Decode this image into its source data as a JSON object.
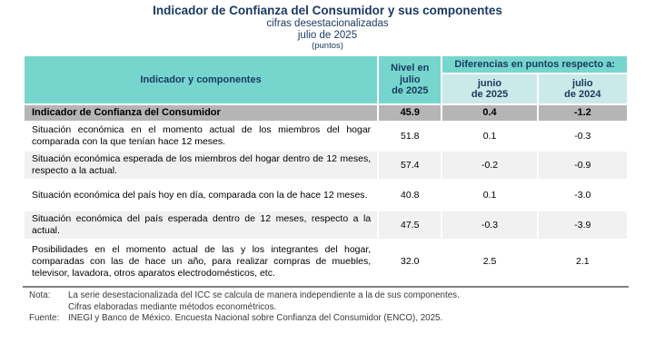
{
  "title": {
    "main": "Indicador de Confianza del Consumidor y sus componentes",
    "subtitle": "cifras desestacionalizadas",
    "date": "julio de 2025",
    "units": "(puntos)"
  },
  "table": {
    "header": {
      "indicator": "Indicador y componentes",
      "level": "Nivel en\njulio\nde 2025",
      "diff_group": "Diferencias en puntos respecto a:",
      "diff_junio": "junio\nde 2025",
      "diff_julio": "julio\nde 2024"
    },
    "summary_row": {
      "label": "Indicador de Confianza del Consumidor",
      "level": "45.9",
      "diff_junio": "0.4",
      "diff_julio": "-1.2"
    },
    "rows": [
      {
        "label": "Situación económica en el momento actual de los miembros del hogar comparada con la que tenían hace 12 meses.",
        "level": "51.8",
        "diff_junio": "0.1",
        "diff_julio": "-0.3"
      },
      {
        "label": "Situación económica esperada de los miembros del hogar dentro de 12 meses, respecto a la actual.",
        "level": "57.4",
        "diff_junio": "-0.2",
        "diff_julio": "-0.9"
      },
      {
        "label": "Situación económica del país hoy en día, comparada con la de hace 12 meses.",
        "level": "40.8",
        "diff_junio": "0.1",
        "diff_julio": "-3.0"
      },
      {
        "label": "Situación económica del país esperada dentro de 12 meses, respecto a la actual.",
        "level": "47.5",
        "diff_junio": "-0.3",
        "diff_julio": "-3.9"
      },
      {
        "label": "Posibilidades en el momento actual de las y los integrantes del hogar, comparadas con las de hace un año, para realizar compras de muebles, televisor, lavadora, otros aparatos electrodomésticos, etc.",
        "level": "32.0",
        "diff_junio": "2.5",
        "diff_julio": "2.1"
      }
    ]
  },
  "notes": {
    "nota_label": "Nota:",
    "nota_line1": "La serie desestacionalizada del ICC se calcula de manera independiente a la de sus componentes.",
    "nota_line2": "Cifras elaboradas mediante métodos econométricos.",
    "fuente_label": "Fuente:",
    "fuente_text": "INEGI y Banco de México. Encuesta Nacional sobre Confianza del Consumidor (ENCO), 2025."
  },
  "colors": {
    "navy_text": "#1B3A61",
    "teal_header": "#76D6CE",
    "teal_light": "#C9EAE8",
    "summary_gray": "#B5B5B5",
    "zebra_gray": "#F1F1F1",
    "rule_gray": "#7F7F7F"
  }
}
